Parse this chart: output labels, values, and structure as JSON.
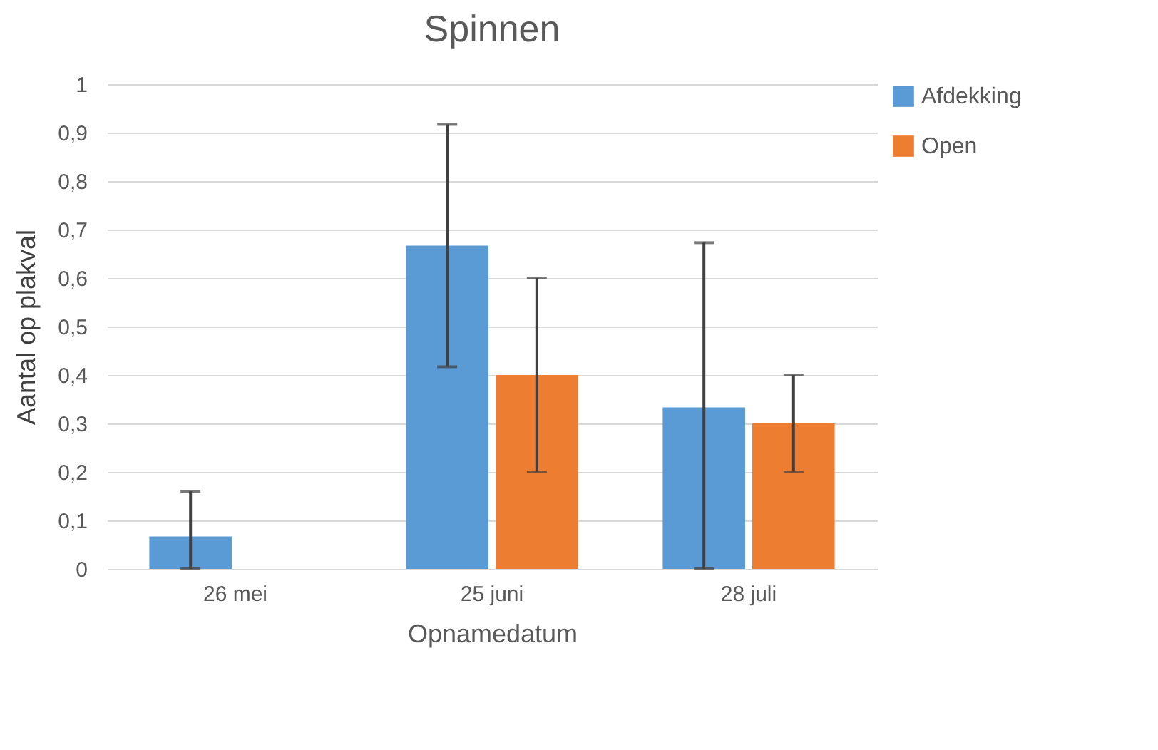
{
  "chart_data": {
    "type": "bar",
    "title": "Spinnen",
    "xlabel": "Opnamedatum",
    "ylabel": "Aantal op plakval",
    "categories": [
      "26 mei",
      "25 juni",
      "28 juli"
    ],
    "series": [
      {
        "name": "Afdekking",
        "color": "#5b9bd5",
        "values": [
          0.067,
          0.667,
          0.333
        ],
        "errors": [
          [
            0,
            0.16
          ],
          [
            0.417,
            0.917
          ],
          [
            0,
            0.673
          ]
        ]
      },
      {
        "name": "Open",
        "color": "#ed7d31",
        "values": [
          null,
          0.4,
          0.3
        ],
        "errors": [
          null,
          [
            0.2,
            0.6
          ],
          [
            0.2,
            0.4
          ]
        ]
      }
    ],
    "ylim": [
      0,
      1
    ],
    "yticks": [
      0,
      {
        "value": 0.1,
        "label": "0,1"
      },
      {
        "value": 0.2,
        "label": "0,2"
      },
      {
        "value": 0.3,
        "label": "0,3"
      },
      {
        "value": 0.4,
        "label": "0,4"
      },
      {
        "value": 0.5,
        "label": "0,5"
      },
      {
        "value": 0.6,
        "label": "0,6"
      },
      {
        "value": 0.7,
        "label": "0,7"
      },
      {
        "value": 0.8,
        "label": "0,8"
      },
      {
        "value": 0.9,
        "label": "0,9"
      },
      1
    ],
    "grid": "y",
    "legend": "right"
  }
}
